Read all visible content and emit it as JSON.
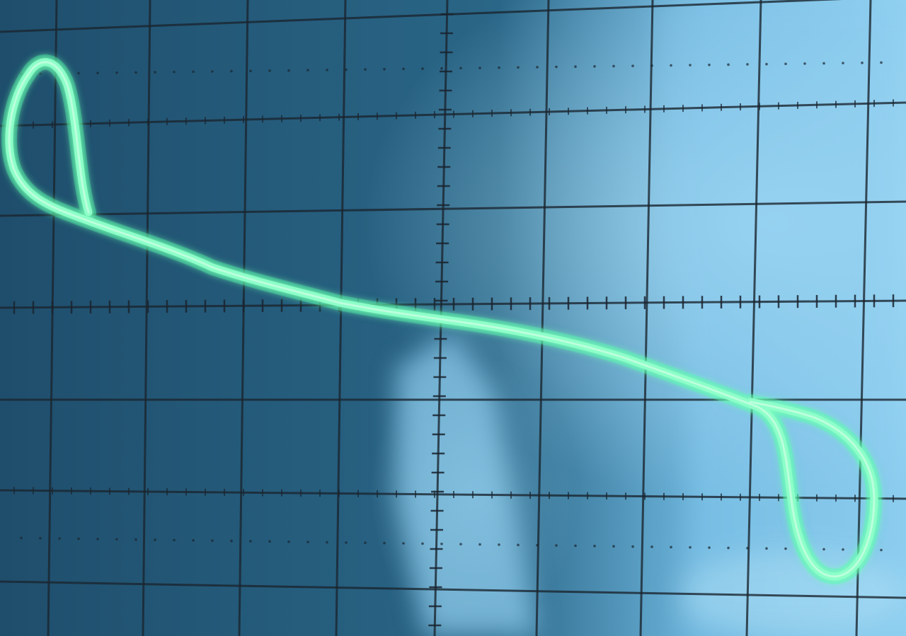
{
  "scene": {
    "description_kind": "oscilloscope-photo",
    "colors": {
      "screen_dark": "#1e4d6b",
      "screen_mid": "#2f6a8c",
      "glare": "#8fd0f0",
      "grid": "#1a2530",
      "trace": "#7dffc0",
      "trace_glow": "#3dffa0"
    },
    "graticule": {
      "major_divisions_x": 10,
      "major_divisions_y": 8,
      "minor_per_division": 5
    },
    "trace_shape": "hysteresis-loop"
  }
}
